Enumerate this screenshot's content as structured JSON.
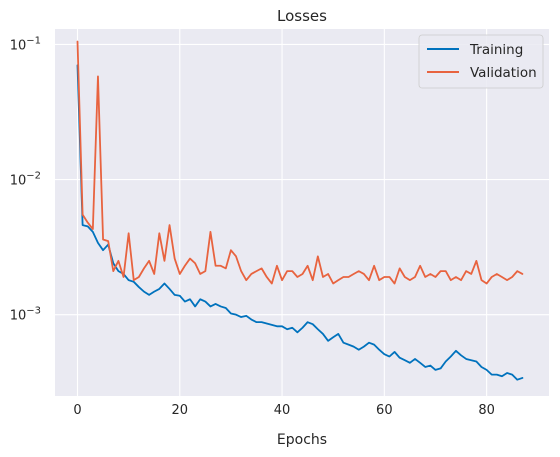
{
  "chart_data": {
    "type": "line",
    "title": "Losses",
    "xlabel": "Epochs",
    "ylabel": "",
    "yscale": "log",
    "xlim": [
      -4.4,
      92.2
    ],
    "ylim": [
      0.00025,
      0.13
    ],
    "x_ticks": [
      {
        "value": 0,
        "label": "0"
      },
      {
        "value": 20,
        "label": "20"
      },
      {
        "value": 40,
        "label": "40"
      },
      {
        "value": 60,
        "label": "60"
      },
      {
        "value": 80,
        "label": "80"
      }
    ],
    "y_ticks": [
      {
        "value": 0.001,
        "base": "10",
        "exp": "−3"
      },
      {
        "value": 0.01,
        "base": "10",
        "exp": "−2"
      },
      {
        "value": 0.1,
        "base": "10",
        "exp": "−1"
      }
    ],
    "grid": true,
    "legend_position": "top-right",
    "series": [
      {
        "name": "Training",
        "color": "#0072bd",
        "x": [
          0,
          1,
          2,
          3,
          4,
          5,
          6,
          7,
          8,
          9,
          10,
          11,
          12,
          13,
          14,
          15,
          16,
          17,
          18,
          19,
          20,
          21,
          22,
          23,
          24,
          25,
          26,
          27,
          28,
          29,
          30,
          31,
          32,
          33,
          34,
          35,
          36,
          37,
          38,
          39,
          40,
          41,
          42,
          43,
          44,
          45,
          46,
          47,
          48,
          49,
          50,
          51,
          52,
          53,
          54,
          55,
          56,
          57,
          58,
          59,
          60,
          61,
          62,
          63,
          64,
          65,
          66,
          67,
          68,
          69,
          70,
          71,
          72,
          73,
          74,
          75,
          76,
          77,
          78,
          79,
          80,
          81,
          82,
          83,
          84,
          85,
          86,
          87
        ],
        "values": [
          0.07,
          0.0046,
          0.0045,
          0.0041,
          0.0034,
          0.003,
          0.0033,
          0.0024,
          0.0021,
          0.002,
          0.0018,
          0.00175,
          0.0016,
          0.00148,
          0.0014,
          0.00148,
          0.00155,
          0.0017,
          0.00155,
          0.0014,
          0.00138,
          0.00125,
          0.0013,
          0.00115,
          0.0013,
          0.00125,
          0.00115,
          0.0012,
          0.00115,
          0.00112,
          0.00102,
          0.001,
          0.00096,
          0.00098,
          0.00092,
          0.00088,
          0.00088,
          0.00086,
          0.00084,
          0.00082,
          0.00082,
          0.00078,
          0.0008,
          0.00074,
          0.0008,
          0.00088,
          0.00085,
          0.00078,
          0.00072,
          0.00064,
          0.00068,
          0.00072,
          0.00062,
          0.0006,
          0.00058,
          0.00055,
          0.00058,
          0.00062,
          0.0006,
          0.00055,
          0.00051,
          0.00049,
          0.00053,
          0.00048,
          0.00046,
          0.00044,
          0.00047,
          0.00044,
          0.00041,
          0.00042,
          0.00039,
          0.0004,
          0.00045,
          0.00049,
          0.00054,
          0.0005,
          0.00047,
          0.00046,
          0.00045,
          0.00041,
          0.00039,
          0.00036,
          0.00036,
          0.00035,
          0.00037,
          0.00036,
          0.00033,
          0.00034
        ]
      },
      {
        "name": "Validation",
        "color": "#e8633f",
        "x": [
          0,
          1,
          2,
          3,
          4,
          5,
          6,
          7,
          8,
          9,
          10,
          11,
          12,
          13,
          14,
          15,
          16,
          17,
          18,
          19,
          20,
          21,
          22,
          23,
          24,
          25,
          26,
          27,
          28,
          29,
          30,
          31,
          32,
          33,
          34,
          35,
          36,
          37,
          38,
          39,
          40,
          41,
          42,
          43,
          44,
          45,
          46,
          47,
          48,
          49,
          50,
          51,
          52,
          53,
          54,
          55,
          56,
          57,
          58,
          59,
          60,
          61,
          62,
          63,
          64,
          65,
          66,
          67,
          68,
          69,
          70,
          71,
          72,
          73,
          74,
          75,
          76,
          77,
          78,
          79,
          80,
          81,
          82,
          83,
          84,
          85,
          86,
          87
        ],
        "values": [
          0.105,
          0.0055,
          0.0048,
          0.0043,
          0.058,
          0.0036,
          0.0035,
          0.0021,
          0.0025,
          0.0019,
          0.004,
          0.0018,
          0.0019,
          0.0022,
          0.0025,
          0.002,
          0.004,
          0.0025,
          0.0046,
          0.0026,
          0.002,
          0.0023,
          0.0026,
          0.0024,
          0.002,
          0.0021,
          0.0041,
          0.0023,
          0.0023,
          0.0022,
          0.003,
          0.0027,
          0.0021,
          0.0018,
          0.002,
          0.0021,
          0.0022,
          0.0019,
          0.0017,
          0.0023,
          0.0018,
          0.0021,
          0.0021,
          0.0019,
          0.002,
          0.0023,
          0.0018,
          0.0027,
          0.0019,
          0.002,
          0.0017,
          0.0018,
          0.0019,
          0.0019,
          0.002,
          0.0021,
          0.002,
          0.0018,
          0.0023,
          0.0018,
          0.0019,
          0.0019,
          0.0017,
          0.0022,
          0.0019,
          0.0018,
          0.0019,
          0.0023,
          0.0019,
          0.002,
          0.0019,
          0.0021,
          0.0021,
          0.0018,
          0.0019,
          0.0018,
          0.0021,
          0.002,
          0.0025,
          0.0018,
          0.0017,
          0.0019,
          0.002,
          0.0019,
          0.0018,
          0.0019,
          0.0021,
          0.002
        ]
      }
    ]
  }
}
